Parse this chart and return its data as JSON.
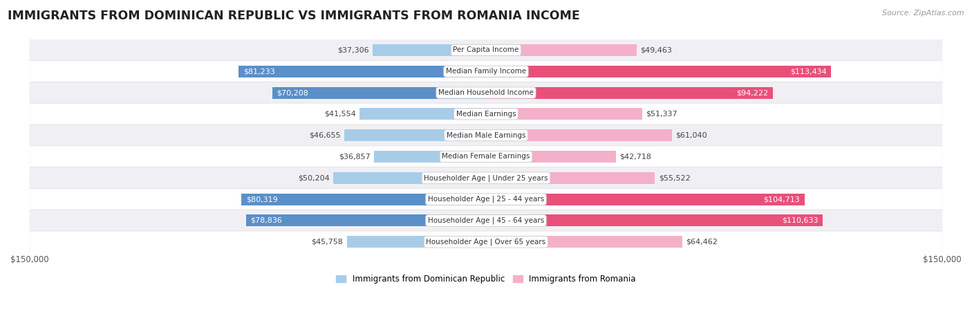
{
  "title": "IMMIGRANTS FROM DOMINICAN REPUBLIC VS IMMIGRANTS FROM ROMANIA INCOME",
  "source": "Source: ZipAtlas.com",
  "categories": [
    "Per Capita Income",
    "Median Family Income",
    "Median Household Income",
    "Median Earnings",
    "Median Male Earnings",
    "Median Female Earnings",
    "Householder Age | Under 25 years",
    "Householder Age | 25 - 44 years",
    "Householder Age | 45 - 64 years",
    "Householder Age | Over 65 years"
  ],
  "dominican": [
    37306,
    81233,
    70208,
    41554,
    46655,
    36857,
    50204,
    80319,
    78836,
    45758
  ],
  "romania": [
    49463,
    113434,
    94222,
    51337,
    61040,
    42718,
    55522,
    104713,
    110633,
    64462
  ],
  "dominican_labels": [
    "$37,306",
    "$81,233",
    "$70,208",
    "$41,554",
    "$46,655",
    "$36,857",
    "$50,204",
    "$80,319",
    "$78,836",
    "$45,758"
  ],
  "romania_labels": [
    "$49,463",
    "$113,434",
    "$94,222",
    "$51,337",
    "$61,040",
    "$42,718",
    "$55,522",
    "$104,713",
    "$110,633",
    "$64,462"
  ],
  "max_val": 150000,
  "color_dominican_light": "#a8cce8",
  "color_dominican_dark": "#5b8fc8",
  "color_romania_light": "#f4b0c8",
  "color_romania_dark": "#e8507a",
  "bg_row_light": "#f0f0f4",
  "bg_row_white": "#ffffff",
  "label_fontsize": 8.0,
  "cat_fontsize": 7.5,
  "title_fontsize": 12.5,
  "bar_height": 0.55,
  "dominican_dark_threshold": 65000,
  "romania_dark_threshold": 85000
}
